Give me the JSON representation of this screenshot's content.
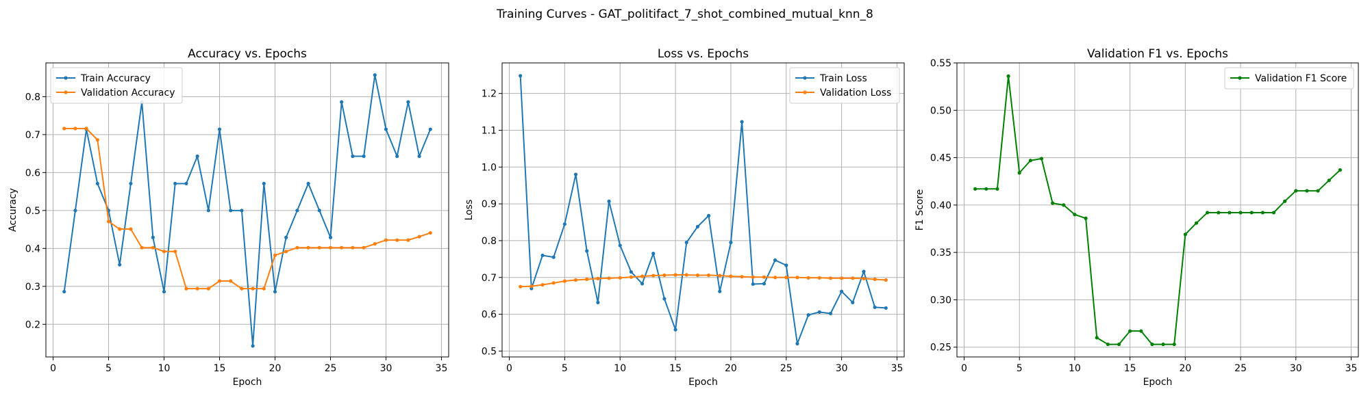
{
  "figure": {
    "suptitle": "Training Curves - GAT_politifact_7_shot_combined_mutual_knn_8"
  },
  "colors": {
    "blue": "#1f77b4",
    "orange": "#ff7f0e",
    "green": "#008000",
    "grid": "#b0b0b0"
  },
  "chart_data": [
    {
      "type": "line",
      "title": "Accuracy vs. Epochs",
      "xlabel": "Epoch",
      "ylabel": "Accuracy",
      "xlim": [
        -0.65,
        35.65
      ],
      "ylim": [
        0.114,
        0.889
      ],
      "xticks": [
        0,
        5,
        10,
        15,
        20,
        25,
        30,
        35
      ],
      "yticks": [
        0.2,
        0.3,
        0.4,
        0.5,
        0.6,
        0.7,
        0.8
      ],
      "ytick_labels": [
        "0.2",
        "0.3",
        "0.4",
        "0.5",
        "0.6",
        "0.7",
        "0.8"
      ],
      "grid": true,
      "legend_loc": "upper-left",
      "x": [
        1,
        2,
        3,
        4,
        5,
        6,
        7,
        8,
        9,
        10,
        11,
        12,
        13,
        14,
        15,
        16,
        17,
        18,
        19,
        20,
        21,
        22,
        23,
        24,
        25,
        26,
        27,
        28,
        29,
        30,
        31,
        32,
        33,
        34
      ],
      "series": [
        {
          "name": "Train Accuracy",
          "color": "#1f77b4",
          "values": [
            0.286,
            0.5,
            0.714,
            0.571,
            0.5,
            0.357,
            0.571,
            0.786,
            0.429,
            0.286,
            0.571,
            0.571,
            0.643,
            0.5,
            0.714,
            0.5,
            0.5,
            0.143,
            0.571,
            0.286,
            0.429,
            0.5,
            0.571,
            0.5,
            0.429,
            0.786,
            0.643,
            0.643,
            0.857,
            0.714,
            0.643,
            0.786,
            0.643,
            0.714
          ]
        },
        {
          "name": "Validation Accuracy",
          "color": "#ff7f0e",
          "values": [
            0.716,
            0.716,
            0.716,
            0.686,
            0.471,
            0.451,
            0.451,
            0.402,
            0.402,
            0.392,
            0.392,
            0.294,
            0.294,
            0.294,
            0.314,
            0.314,
            0.294,
            0.294,
            0.294,
            0.382,
            0.392,
            0.402,
            0.402,
            0.402,
            0.402,
            0.402,
            0.402,
            0.402,
            0.412,
            0.422,
            0.422,
            0.422,
            0.431,
            0.441
          ]
        }
      ]
    },
    {
      "type": "line",
      "title": "Loss vs. Epochs",
      "xlabel": "Epoch",
      "ylabel": "Loss",
      "xlim": [
        -0.65,
        35.65
      ],
      "ylim": [
        0.484,
        1.283
      ],
      "xticks": [
        0,
        5,
        10,
        15,
        20,
        25,
        30,
        35
      ],
      "yticks": [
        0.5,
        0.6,
        0.7,
        0.8,
        0.9,
        1.0,
        1.1,
        1.2
      ],
      "ytick_labels": [
        "0.5",
        "0.6",
        "0.7",
        "0.8",
        "0.9",
        "1.0",
        "1.1",
        "1.2"
      ],
      "grid": true,
      "legend_loc": "upper-right",
      "x": [
        1,
        2,
        3,
        4,
        5,
        6,
        7,
        8,
        9,
        10,
        11,
        12,
        13,
        14,
        15,
        16,
        17,
        18,
        19,
        20,
        21,
        22,
        23,
        24,
        25,
        26,
        27,
        28,
        29,
        30,
        31,
        32,
        33,
        34
      ],
      "series": [
        {
          "name": "Train Loss",
          "color": "#1f77b4",
          "values": [
            1.248,
            0.67,
            0.76,
            0.755,
            0.845,
            0.98,
            0.772,
            0.632,
            0.907,
            0.787,
            0.715,
            0.683,
            0.765,
            0.642,
            0.558,
            0.795,
            0.838,
            0.868,
            0.662,
            0.795,
            1.123,
            0.682,
            0.683,
            0.747,
            0.733,
            0.52,
            0.598,
            0.606,
            0.602,
            0.662,
            0.632,
            0.716,
            0.619,
            0.617
          ]
        },
        {
          "name": "Validation Loss",
          "color": "#ff7f0e",
          "values": [
            0.675,
            0.676,
            0.68,
            0.685,
            0.69,
            0.693,
            0.695,
            0.697,
            0.698,
            0.699,
            0.701,
            0.703,
            0.705,
            0.706,
            0.707,
            0.707,
            0.706,
            0.706,
            0.705,
            0.703,
            0.702,
            0.701,
            0.701,
            0.7,
            0.7,
            0.7,
            0.699,
            0.699,
            0.698,
            0.698,
            0.698,
            0.697,
            0.695,
            0.693
          ]
        }
      ]
    },
    {
      "type": "line",
      "title": "Validation F1 vs. Epochs",
      "xlabel": "Epoch",
      "ylabel": "F1 Score",
      "xlim": [
        -0.65,
        35.65
      ],
      "ylim": [
        0.2397,
        0.55
      ],
      "xticks": [
        0,
        5,
        10,
        15,
        20,
        25,
        30,
        35
      ],
      "yticks": [
        0.25,
        0.3,
        0.35,
        0.4,
        0.45,
        0.5,
        0.55
      ],
      "ytick_labels": [
        "0.25",
        "0.30",
        "0.35",
        "0.40",
        "0.45",
        "0.50",
        "0.55"
      ],
      "grid": true,
      "legend_loc": "upper-right",
      "x": [
        1,
        2,
        3,
        4,
        5,
        6,
        7,
        8,
        9,
        10,
        11,
        12,
        13,
        14,
        15,
        16,
        17,
        18,
        19,
        20,
        21,
        22,
        23,
        24,
        25,
        26,
        27,
        28,
        29,
        30,
        31,
        32,
        33,
        34
      ],
      "series": [
        {
          "name": "Validation F1 Score",
          "color": "#008000",
          "values": [
            0.417,
            0.417,
            0.417,
            0.536,
            0.434,
            0.447,
            0.449,
            0.402,
            0.4,
            0.39,
            0.386,
            0.26,
            0.253,
            0.253,
            0.267,
            0.267,
            0.253,
            0.253,
            0.253,
            0.369,
            0.381,
            0.392,
            0.392,
            0.392,
            0.392,
            0.392,
            0.392,
            0.392,
            0.404,
            0.415,
            0.415,
            0.415,
            0.426,
            0.437
          ]
        }
      ]
    }
  ]
}
